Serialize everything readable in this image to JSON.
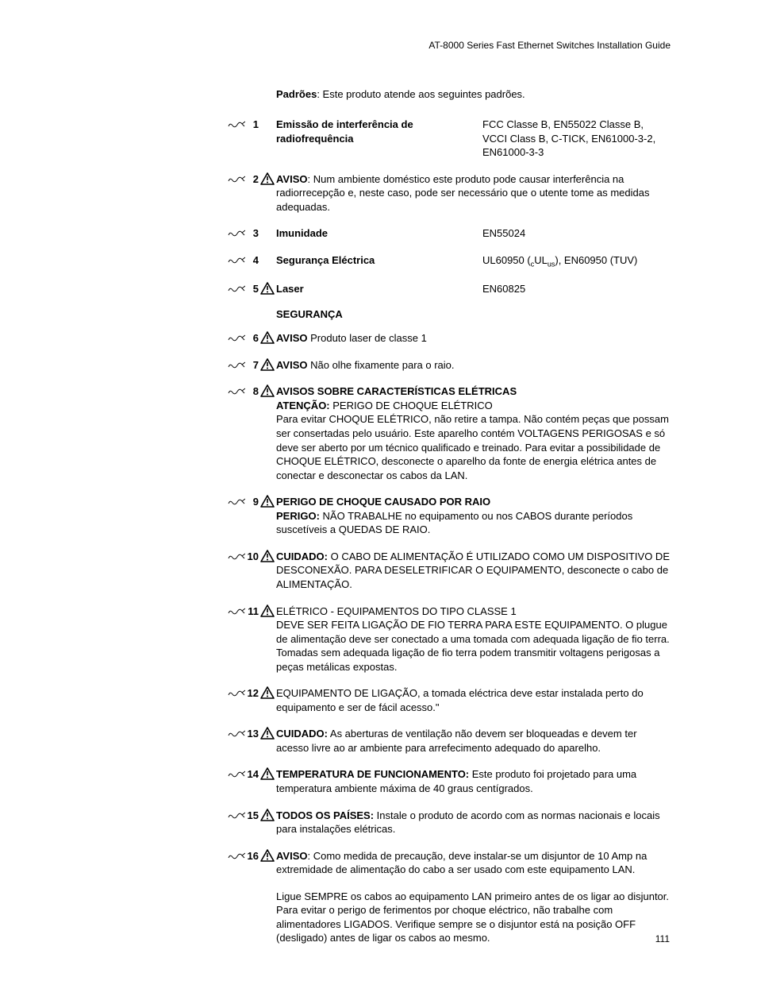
{
  "header": "AT-8000 Series Fast Ethernet Switches Installation Guide",
  "page_number": "111",
  "intro_label": "Padrões",
  "intro_text": ":  Este produto atende aos seguintes padrões.",
  "section_title": "SEGURANÇA",
  "icons": {
    "warning": true
  },
  "items": [
    {
      "n": "1",
      "icon": false,
      "two_col": true,
      "left_bold": "Emissão de interferência de radiofrequência",
      "left_rest": "",
      "right": "FCC Classe B, EN55022 Classe B, VCCI Class B, C-TICK, EN61000-3-2, EN61000-3-3"
    },
    {
      "n": "2",
      "icon": true,
      "bold": "AVISO",
      "text": ": Num ambiente doméstico este produto pode causar interferência na radiorrecepção e, neste caso, pode ser necessário que o utente tome as medidas adequadas."
    },
    {
      "n": "3",
      "icon": false,
      "two_col": true,
      "left_bold": "Imunidade",
      "left_rest": "",
      "right": "EN55024"
    },
    {
      "n": "4",
      "icon": false,
      "two_col": true,
      "left_bold": "Segurança Eléctrica",
      "left_rest": "",
      "right_html": "UL60950 (<span class=\"sub\">c</span>UL<span class=\"sub\">us</span>), EN60950 (TUV)"
    },
    {
      "n": "5",
      "icon": true,
      "two_col": true,
      "left_bold": "Laser",
      "left_rest": "",
      "right": "EN60825"
    }
  ],
  "items2": [
    {
      "n": "6",
      "icon": true,
      "bold": "AVISO",
      "text": " Produto laser de classe 1"
    },
    {
      "n": "7",
      "icon": true,
      "bold": "AVISO",
      "text": " Não olhe fixamente para o raio."
    },
    {
      "n": "8",
      "icon": true,
      "lines": [
        {
          "bold": "AVISOS SOBRE CARACTERÍSTICAS ELÉTRICAS",
          "text": ""
        },
        {
          "bold": "ATENÇÃO:",
          "text": " PERIGO DE CHOQUE ELÉTRICO"
        }
      ],
      "rest": "Para evitar CHOQUE ELÉTRICO, não retire a tampa. Não contém peças que possam ser consertadas pelo usuário. Este aparelho contém VOLTAGENS PERIGOSAS e só deve ser  aberto por um técnico qualificado e treinado. Para evitar a possibilidade de CHOQUE  ELÉTRICO, desconecte o aparelho da fonte de energia elétrica antes de conectar e desconectar os cabos da LAN."
    },
    {
      "n": "9",
      "icon": true,
      "lines": [
        {
          "bold": "PERIGO DE CHOQUE CAUSADO POR RAIO",
          "text": ""
        },
        {
          "bold": "PERIGO:",
          "text": " NÃO TRABALHE no equipamento ou nos CABOS durante períodos suscetíveis a QUEDAS DE RAIO."
        }
      ]
    },
    {
      "n": "10",
      "icon": true,
      "bold": "CUIDADO:",
      "text": " O CABO DE ALIMENTAÇÃO É UTILIZADO COMO UM  DISPOSITIVO DE DESCONEXÃO. PARA DESELETRIFICAR O EQUIPAMENTO, desconecte o cabo de ALIMENTAÇÃO."
    },
    {
      "n": "11",
      "icon": true,
      "pre": "ELÉTRICO - EQUIPAMENTOS DO TIPO CLASSE 1",
      "text2": "DEVE SER FEITA LIGAÇÃO DE FIO TERRA PARA ESTE EQUIPAMENTO. O plugue de alimentação deve ser conectado a uma tomada com adequada ligação de fio terra. Tomadas sem adequada ligação de fio terra podem transmitir voltagens perigosas a peças metálicas expostas."
    },
    {
      "n": "12",
      "icon": true,
      "text_only": "EQUIPAMENTO DE LIGAÇÃO, a tomada eléctrica deve estar instalada perto do equipamento e ser de fácil acesso.\""
    },
    {
      "n": "13",
      "icon": true,
      "bold": "CUIDADO:",
      "text": " As aberturas de ventilação não devem ser bloqueadas e devem ter acesso livre ao ar ambiente para arrefecimento adequado do aparelho."
    },
    {
      "n": "14",
      "icon": true,
      "bold": "TEMPERATURA DE FUNCIONAMENTO:",
      "text": " Este produto foi projetado para uma temperatura ambiente máxima de 40 graus centígrados."
    },
    {
      "n": "15",
      "icon": true,
      "bold": "TODOS OS PAÍSES:",
      "text": " Instale o produto de acordo com as normas nacionais e locais para instalações elétricas."
    },
    {
      "n": "16",
      "icon": true,
      "bold": "AVISO",
      "text": ": Como medida de precaução, deve instalar-se um disjuntor de 10 Amp na extremidade de alimentação do cabo a ser usado com este equipamento LAN."
    }
  ],
  "trailing": "Ligue SEMPRE os cabos ao equipamento LAN primeiro antes de os ligar ao disjuntor. Para evitar o perigo de ferimentos por choque eléctrico, não trabalhe com alimentadores LIGADOS. Verifique sempre se o disjuntor está na posição OFF (desligado) antes de ligar os cabos ao mesmo."
}
